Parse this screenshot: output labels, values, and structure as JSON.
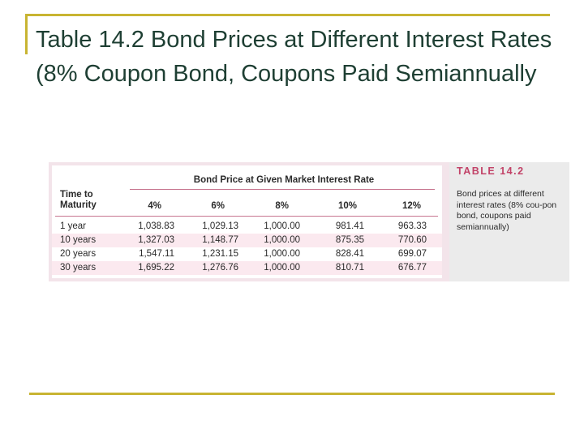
{
  "slide": {
    "title": "Table 14.2 Bond Prices at Different Interest Rates (8% Coupon Bond, Coupons Paid Semiannually"
  },
  "figure": {
    "table_label": "TABLE 14.2",
    "caption": "Bond prices at different interest rates (8% cou-pon bond, coupons paid semiannually)",
    "spanner": "Bond Price at Given Market Interest Rate",
    "stub_header_line1": "Time to",
    "stub_header_line2": "Maturity",
    "columns": [
      "4%",
      "6%",
      "8%",
      "10%",
      "12%"
    ],
    "rows": [
      {
        "maturity": "1 year",
        "values": [
          "1,038.83",
          "1,029.13",
          "1,000.00",
          "981.41",
          "963.33"
        ]
      },
      {
        "maturity": "10 years",
        "values": [
          "1,327.03",
          "1,148.77",
          "1,000.00",
          "875.35",
          "770.60"
        ]
      },
      {
        "maturity": "20 years",
        "values": [
          "1,547.11",
          "1,231.15",
          "1,000.00",
          "828.41",
          "699.07"
        ]
      },
      {
        "maturity": "30 years",
        "values": [
          "1,695.22",
          "1,276.76",
          "1,000.00",
          "810.71",
          "676.77"
        ]
      }
    ]
  }
}
